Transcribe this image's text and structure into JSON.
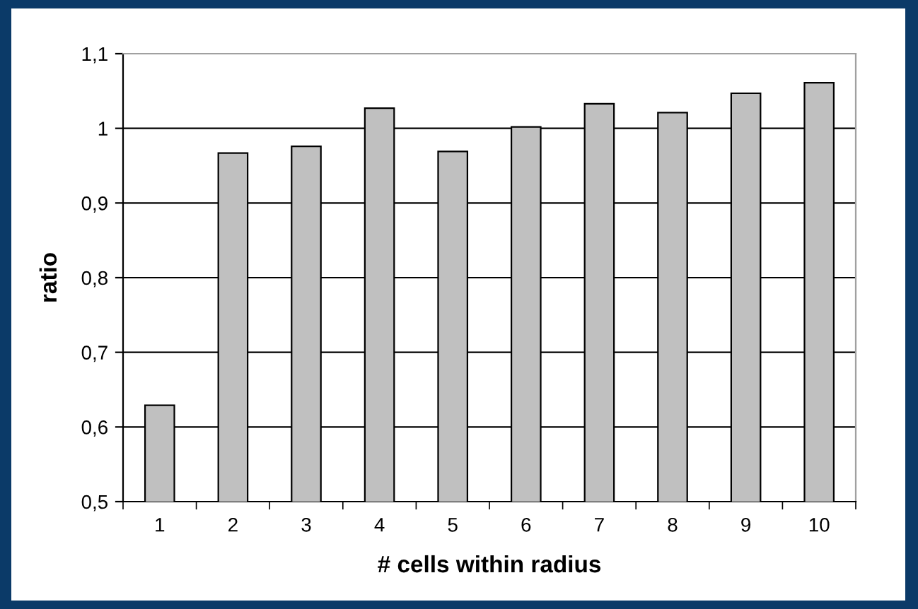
{
  "chart_data": {
    "type": "bar",
    "xlabel": "# cells within radius",
    "ylabel": "ratio",
    "categories": [
      "1",
      "2",
      "3",
      "4",
      "5",
      "6",
      "7",
      "8",
      "9",
      "10"
    ],
    "values": [
      0.629,
      0.967,
      0.976,
      1.027,
      0.969,
      1.002,
      1.033,
      1.021,
      1.047,
      1.061
    ],
    "color": "#c0c0c0",
    "ylim": [
      0.5,
      1.1
    ],
    "yticks": [
      {
        "value": 0.5,
        "label": "0,5"
      },
      {
        "value": 0.6,
        "label": "0,6"
      },
      {
        "value": 0.7,
        "label": "0,7"
      },
      {
        "value": 0.8,
        "label": "0,8"
      },
      {
        "value": 0.9,
        "label": "0,9"
      },
      {
        "value": 1,
        "label": "1"
      },
      {
        "value": 1.1,
        "label": "1,1"
      }
    ],
    "grid": "y"
  }
}
